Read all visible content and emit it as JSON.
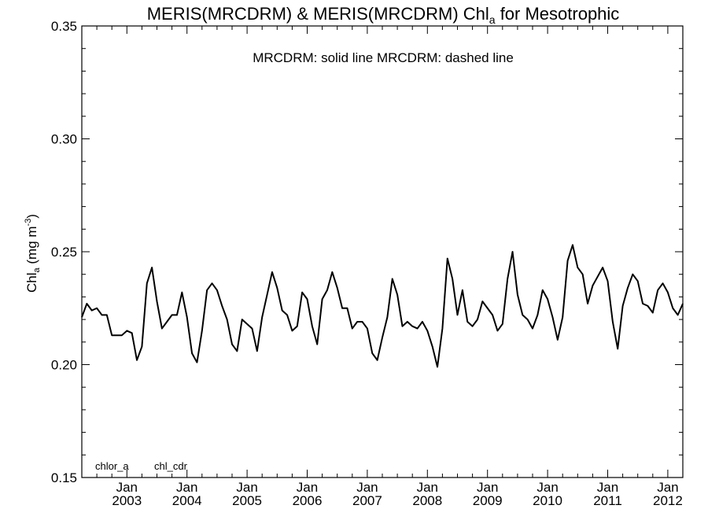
{
  "chart_data": {
    "type": "line",
    "title_main": "MERIS(MRCDRM) & MERIS(MRCDRM)  Chl",
    "title_sub": "a",
    "title_end": " for Mesotrophic",
    "ylabel_main": "Chl",
    "ylabel_sub": "a",
    "ylabel_unit": " (mg m",
    "ylabel_sup": "-3",
    "ylabel_close": ")",
    "annotation": "MRCDRM: solid line   MRCDRM: dashed line",
    "legend_left": "chlor_a",
    "legend_right": "chl_cdr",
    "ylim": [
      0.15,
      0.35
    ],
    "yticks": [
      "0.15",
      "0.20",
      "0.25",
      "0.30",
      "0.35"
    ],
    "xlim": [
      2002.25,
      2012.25
    ],
    "xticks": [
      {
        "month": "Jan",
        "year": "2003"
      },
      {
        "month": "Jan",
        "year": "2004"
      },
      {
        "month": "Jan",
        "year": "2005"
      },
      {
        "month": "Jan",
        "year": "2006"
      },
      {
        "month": "Jan",
        "year": "2007"
      },
      {
        "month": "Jan",
        "year": "2008"
      },
      {
        "month": "Jan",
        "year": "2009"
      },
      {
        "month": "Jan",
        "year": "2010"
      },
      {
        "month": "Jan",
        "year": "2011"
      },
      {
        "month": "Jan",
        "year": "2012"
      }
    ],
    "series": [
      {
        "style": "solid",
        "color": "#000000",
        "x_start": "2002-04",
        "frequency": "monthly",
        "values": [
          0.221,
          0.227,
          0.224,
          0.225,
          0.222,
          0.222,
          0.213,
          0.213,
          0.213,
          0.215,
          0.214,
          0.202,
          0.208,
          0.236,
          0.243,
          0.228,
          0.216,
          0.219,
          0.222,
          0.222,
          0.232,
          0.221,
          0.205,
          0.201,
          0.215,
          0.233,
          0.236,
          0.233,
          0.226,
          0.22,
          0.209,
          0.206,
          0.22,
          0.218,
          0.216,
          0.206,
          0.221,
          0.231,
          0.241,
          0.234,
          0.224,
          0.222,
          0.215,
          0.217,
          0.232,
          0.229,
          0.217,
          0.209,
          0.229,
          0.233,
          0.241,
          0.234,
          0.225,
          0.225,
          0.216,
          0.219,
          0.219,
          0.216,
          0.205,
          0.202,
          0.212,
          0.221,
          0.238,
          0.231,
          0.217,
          0.219,
          0.217,
          0.216,
          0.219,
          0.215,
          0.208,
          0.199,
          0.216,
          0.247,
          0.238,
          0.222,
          0.233,
          0.219,
          0.217,
          0.22,
          0.228,
          0.225,
          0.222,
          0.215,
          0.218,
          0.238,
          0.25,
          0.231,
          0.222,
          0.22,
          0.216,
          0.222,
          0.233,
          0.229,
          0.221,
          0.211,
          0.221,
          0.246,
          0.253,
          0.243,
          0.24,
          0.227,
          0.235,
          0.239,
          0.243,
          0.237,
          0.219,
          0.207,
          0.226,
          0.234,
          0.24,
          0.237,
          0.227,
          0.226,
          0.223,
          0.233,
          0.236,
          0.232,
          0.225,
          0.222,
          0.227
        ]
      }
    ]
  }
}
